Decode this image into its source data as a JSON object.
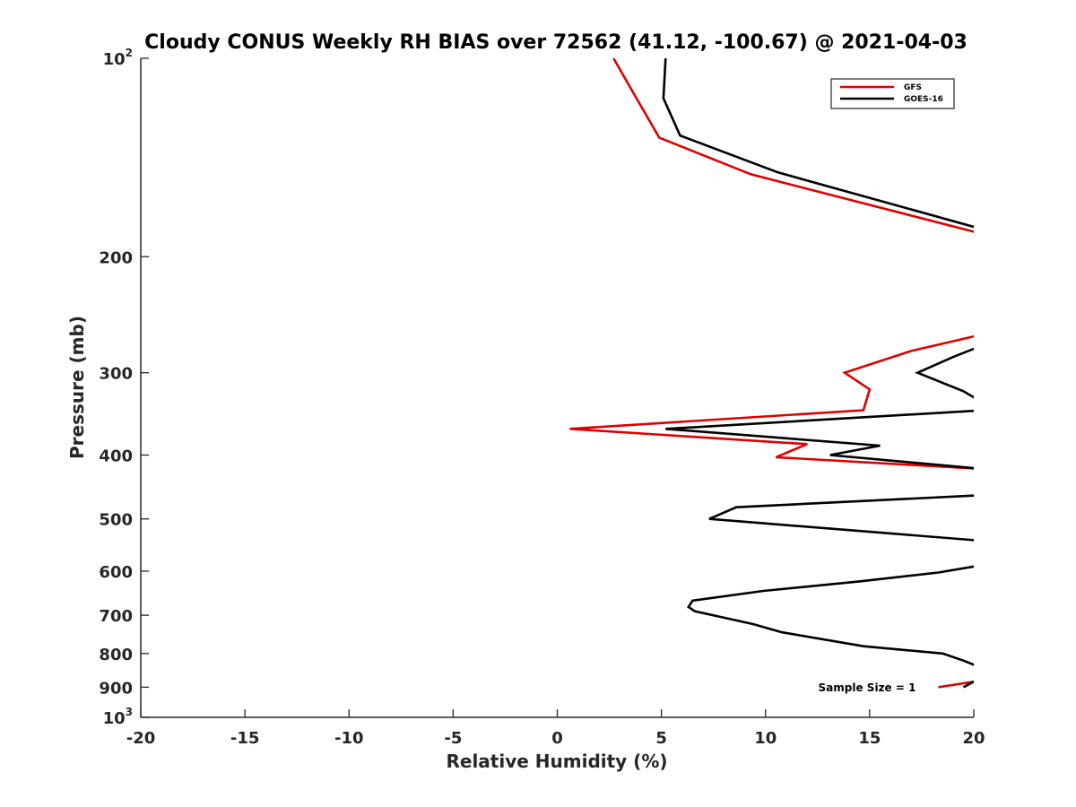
{
  "chart_data": {
    "type": "line",
    "title": "Cloudy CONUS Weekly RH BIAS over 72562 (41.12, -100.67) @ 2021-04-03",
    "xlabel": "Relative Humidity (%)",
    "ylabel": "Pressure (mb)",
    "xlim": [
      -20,
      20
    ],
    "ylim": [
      100,
      1000
    ],
    "y_scale": "log",
    "y_reversed": true,
    "grid": false,
    "legend_position": "top-right",
    "x_ticks": [
      "-20",
      "-15",
      "-10",
      "-5",
      "0",
      "5",
      "10",
      "15",
      "20"
    ],
    "y_ticks": [
      {
        "value": 100,
        "base": "10",
        "sup": "2"
      },
      {
        "value": 200,
        "label": "200"
      },
      {
        "value": 300,
        "label": "300"
      },
      {
        "value": 400,
        "label": "400"
      },
      {
        "value": 500,
        "label": "500"
      },
      {
        "value": 600,
        "label": "600"
      },
      {
        "value": 700,
        "label": "700"
      },
      {
        "value": 800,
        "label": "800"
      },
      {
        "value": 900,
        "label": "900"
      },
      {
        "value": 1000,
        "base": "10",
        "sup": "3"
      }
    ],
    "series": [
      {
        "name": "GFS",
        "color": "#dd0000",
        "segments": [
          [
            [
              2.7,
              100
            ],
            [
              3.8,
              115
            ],
            [
              4.9,
              132
            ],
            [
              9.3,
              150
            ],
            [
              20.5,
              185
            ]
          ],
          [
            [
              20.5,
              262
            ],
            [
              17.0,
              278
            ],
            [
              13.8,
              300
            ],
            [
              15.0,
              318
            ],
            [
              14.7,
              342
            ],
            [
              0.6,
              365
            ],
            [
              12.0,
              385
            ],
            [
              10.5,
              403
            ],
            [
              20.5,
              420
            ]
          ],
          [
            [
              18.3,
              900
            ],
            [
              20.0,
              883
            ]
          ]
        ]
      },
      {
        "name": "GOES-16",
        "color": "#000000",
        "segments": [
          [
            [
              5.2,
              100
            ],
            [
              5.1,
              115
            ],
            [
              5.9,
              131
            ],
            [
              10.6,
              149
            ],
            [
              20.5,
              182
            ]
          ],
          [
            [
              20.5,
              272
            ],
            [
              19.0,
              284
            ],
            [
              17.3,
              300
            ],
            [
              19.5,
              320
            ],
            [
              20.5,
              334
            ]
          ],
          [
            [
              20.5,
              342
            ],
            [
              5.2,
              365
            ],
            [
              15.5,
              387
            ],
            [
              13.1,
              400
            ],
            [
              20.5,
              420
            ]
          ],
          [
            [
              20.5,
              460
            ],
            [
              8.6,
              480
            ],
            [
              7.3,
              500
            ],
            [
              20.5,
              540
            ]
          ],
          [
            [
              20.5,
              587
            ],
            [
              18.3,
              603
            ],
            [
              14.5,
              622
            ],
            [
              9.9,
              643
            ],
            [
              6.5,
              665
            ],
            [
              6.3,
              680
            ],
            [
              6.6,
              690
            ],
            [
              9.4,
              722
            ],
            [
              10.8,
              743
            ],
            [
              14.7,
              780
            ],
            [
              18.5,
              800
            ],
            [
              19.5,
              820
            ],
            [
              20.5,
              844
            ]
          ],
          [
            [
              19.5,
              900
            ],
            [
              20.0,
              883
            ]
          ]
        ]
      }
    ],
    "annotation": "Sample Size = 1"
  }
}
